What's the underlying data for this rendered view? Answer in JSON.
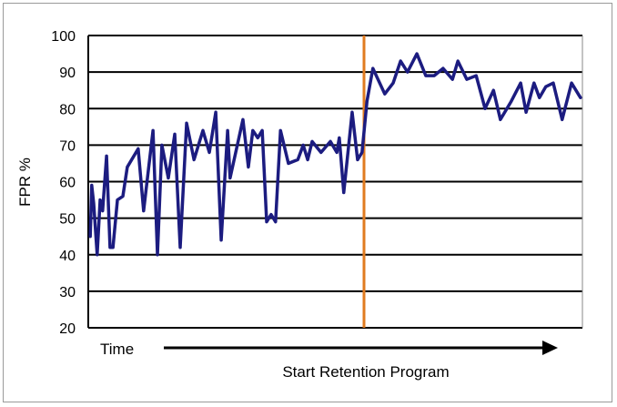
{
  "chart_data": {
    "type": "line",
    "title": "",
    "xlabel": "Time",
    "ylabel": "FPR %",
    "annotation": "Start Retention Program",
    "intervention_x": 55.8,
    "xlim": [
      0,
      100
    ],
    "ylim": [
      20,
      100
    ],
    "yticks": [
      20,
      30,
      40,
      50,
      60,
      70,
      80,
      90,
      100
    ],
    "grid": true,
    "colors": {
      "series": "#1c1c80",
      "intervention": "#e07b20",
      "grid": "#000000"
    },
    "series": [
      {
        "name": "FPR",
        "x": [
          0.4,
          0.7,
          1.1,
          1.8,
          2.4,
          2.9,
          3.7,
          4.4,
          5.0,
          5.9,
          7.0,
          7.9,
          10.1,
          11.2,
          13.1,
          14.0,
          14.9,
          16.2,
          17.5,
          18.6,
          19.9,
          21.4,
          23.2,
          24.5,
          25.8,
          26.9,
          28.2,
          28.7,
          31.3,
          32.4,
          33.3,
          34.3,
          35.2,
          36.1,
          37.0,
          37.9,
          38.9,
          40.5,
          42.4,
          43.5,
          44.4,
          45.3,
          47.1,
          49.0,
          50.3,
          50.8,
          51.7,
          53.4,
          54.5,
          55.4,
          56.4,
          57.6,
          60.0,
          61.7,
          63.2,
          64.6,
          66.5,
          68.3,
          70.0,
          71.8,
          73.7,
          74.8,
          76.6,
          78.5,
          80.3,
          82.0,
          83.4,
          85.6,
          87.5,
          88.6,
          90.2,
          91.3,
          92.6,
          94.1,
          95.9,
          97.8,
          99.6
        ],
        "y": [
          45,
          59,
          54,
          40,
          55,
          52,
          67,
          42,
          42,
          55,
          56,
          64,
          69,
          52,
          74,
          40,
          70,
          61,
          73,
          42,
          76,
          66,
          74,
          68,
          79,
          44,
          74,
          61,
          77,
          64,
          74,
          72,
          74,
          49,
          51,
          49,
          74,
          65,
          66,
          70,
          66,
          71,
          68,
          71,
          68,
          72,
          57,
          79,
          66,
          68,
          82,
          91,
          84,
          87,
          93,
          90,
          95,
          89,
          89,
          91,
          88,
          93,
          88,
          89,
          80,
          85,
          77,
          82,
          87,
          79,
          87,
          83,
          86,
          87,
          77,
          87,
          83
        ]
      }
    ]
  }
}
